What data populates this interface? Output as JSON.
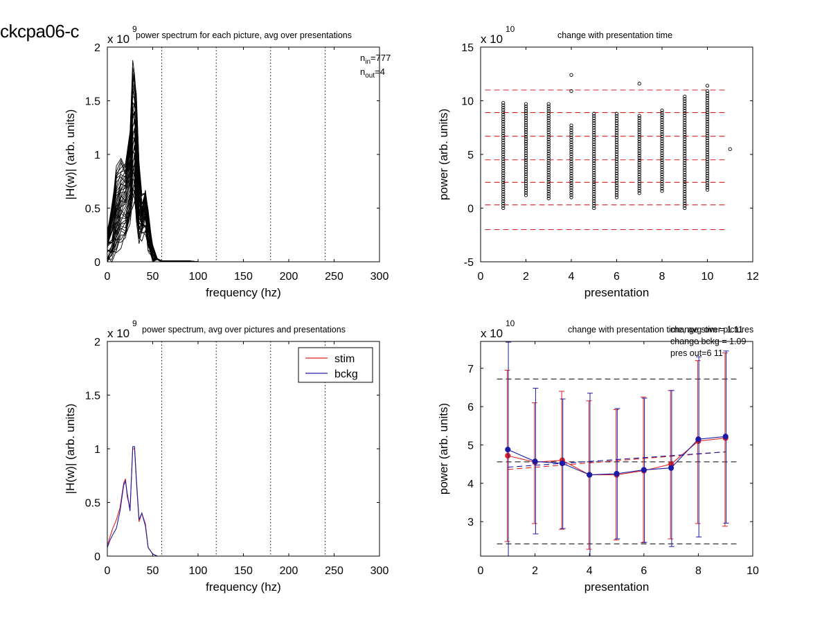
{
  "figure_title": "ckcpa06-c",
  "chart_data": [
    {
      "type": "line",
      "title": "power spectrum for each picture, avg over presentations",
      "xlabel": "frequency (hz)",
      "ylabel": "|H(w)| (arb. units)",
      "xlim": [
        0,
        300
      ],
      "ylim": [
        0,
        2
      ],
      "xticks": [
        0,
        50,
        100,
        150,
        200,
        250,
        300
      ],
      "yticks": [
        0,
        0.5,
        1,
        1.5,
        2
      ],
      "y_multiplier_base": "x 10",
      "y_multiplier_exp": "9",
      "vlines": [
        60,
        120,
        180,
        240,
        300
      ],
      "annotations": {
        "n_in_label": "n",
        "n_in_sub": "in",
        "n_in_value": "=777",
        "n_out_label": "n",
        "n_out_sub": "out",
        "n_out_value": "=4"
      },
      "line_color": "#000000",
      "envelope": {
        "x": [
          0,
          5,
          10,
          15,
          20,
          25,
          28,
          30,
          32,
          35,
          38,
          42,
          45,
          50,
          55,
          60,
          70,
          80,
          90,
          100,
          150,
          200,
          300
        ],
        "low": [
          0.02,
          0.05,
          0.1,
          0.18,
          0.25,
          0.4,
          0.55,
          0.6,
          0.4,
          0.2,
          0.25,
          0.3,
          0.15,
          0.05,
          0.02,
          0.0,
          0.0,
          0.0,
          0.0,
          0.0,
          0.0,
          0.0,
          0.0
        ],
        "high": [
          0.3,
          0.5,
          0.85,
          0.98,
          0.95,
          1.2,
          1.85,
          1.8,
          1.6,
          0.9,
          0.6,
          0.7,
          0.45,
          0.1,
          0.03,
          0.01,
          0.01,
          0.01,
          0.01,
          0.0,
          0.0,
          0.0,
          0.0
        ]
      },
      "n_traces": 40
    },
    {
      "type": "scatter",
      "title": "change with presentation time",
      "xlabel": "presentation",
      "ylabel": "power (arb. units)",
      "xlim": [
        0,
        12
      ],
      "ylim": [
        -5,
        15
      ],
      "xticks": [
        0,
        2,
        4,
        6,
        8,
        10,
        12
      ],
      "yticks": [
        -5,
        0,
        5,
        10,
        15
      ],
      "y_multiplier_base": "x 10",
      "y_multiplier_exp": "10",
      "hlines": [
        -2.0,
        0.3,
        2.4,
        4.5,
        6.7,
        8.9,
        11.0
      ],
      "hline_color": "#d42020",
      "marker_color": "#000000",
      "points": [
        {
          "x": 1,
          "min": 0.0,
          "max": 9.8,
          "extra": []
        },
        {
          "x": 2,
          "min": 1.2,
          "max": 9.7,
          "extra": []
        },
        {
          "x": 3,
          "min": 0.9,
          "max": 9.7,
          "extra": []
        },
        {
          "x": 4,
          "min": 1.0,
          "max": 7.7,
          "extra": [
            10.9,
            12.4
          ]
        },
        {
          "x": 5,
          "min": 0.0,
          "max": 8.8,
          "extra": []
        },
        {
          "x": 6,
          "min": 1.0,
          "max": 8.8,
          "extra": []
        },
        {
          "x": 7,
          "min": 1.4,
          "max": 8.6,
          "extra": [
            11.6
          ]
        },
        {
          "x": 8,
          "min": 1.6,
          "max": 9.1,
          "extra": []
        },
        {
          "x": 9,
          "min": 0.0,
          "max": 10.4,
          "extra": []
        },
        {
          "x": 10,
          "min": 1.7,
          "max": 10.9,
          "extra": [
            11.4
          ]
        },
        {
          "x": 11,
          "min": 5.5,
          "max": 5.5,
          "extra": []
        }
      ]
    },
    {
      "type": "line",
      "title": "power spectrum, avg over pictures and presentations",
      "xlabel": "frequency (hz)",
      "ylabel": "|H(w)| (arb. units)",
      "xlim": [
        0,
        300
      ],
      "ylim": [
        0,
        2
      ],
      "xticks": [
        0,
        50,
        100,
        150,
        200,
        250,
        300
      ],
      "yticks": [
        0,
        0.5,
        1,
        1.5,
        2
      ],
      "y_multiplier_base": "x 10",
      "y_multiplier_exp": "9",
      "vlines": [
        60,
        120,
        180,
        240,
        300
      ],
      "x": [
        0,
        3,
        6,
        10,
        14,
        18,
        20,
        22,
        25,
        28,
        30,
        32,
        35,
        38,
        42,
        45,
        50,
        55,
        60,
        80,
        100,
        150,
        200,
        250,
        300
      ],
      "series": [
        {
          "name": "stim",
          "color": "#e02020",
          "values": [
            0.1,
            0.18,
            0.26,
            0.34,
            0.45,
            0.68,
            0.72,
            0.55,
            0.45,
            1.0,
            1.0,
            0.7,
            0.32,
            0.4,
            0.3,
            0.08,
            0.02,
            0.0,
            0.0,
            0.0,
            0.0,
            0.0,
            0.0,
            0.0,
            0.0
          ]
        },
        {
          "name": "bckg",
          "color": "#1a1aa8",
          "values": [
            0.08,
            0.15,
            0.2,
            0.26,
            0.42,
            0.66,
            0.7,
            0.58,
            0.42,
            1.02,
            1.02,
            0.72,
            0.34,
            0.4,
            0.28,
            0.08,
            0.02,
            0.0,
            0.0,
            0.0,
            0.0,
            0.0,
            0.0,
            0.0,
            0.0
          ]
        }
      ]
    },
    {
      "type": "line",
      "title": "change with presentation time, avg over pictures",
      "xlabel": "presentation",
      "ylabel": "power (arb. units)",
      "xlim": [
        0,
        10
      ],
      "ylim": [
        2.1,
        7.7
      ],
      "xticks": [
        0,
        2,
        4,
        6,
        8,
        10
      ],
      "yticks": [
        3,
        4,
        5,
        6,
        7
      ],
      "y_multiplier_base": "x 10",
      "y_multiplier_exp": "10",
      "annotations": [
        "change stim = 1.11",
        "change bckg = 1.09",
        "pres out=6 11"
      ],
      "hlines": [
        2.42,
        4.56,
        6.72
      ],
      "x": [
        1,
        2,
        3,
        4,
        5,
        6,
        7,
        8,
        9
      ],
      "series": [
        {
          "name": "stim",
          "color": "#e02020",
          "values": [
            4.72,
            4.55,
            4.6,
            4.22,
            4.22,
            4.33,
            4.5,
            5.1,
            5.18
          ],
          "err_low": [
            2.48,
            2.95,
            2.8,
            2.28,
            2.52,
            2.45,
            2.55,
            2.95,
            2.88
          ],
          "err_high": [
            6.95,
            6.1,
            6.4,
            6.15,
            5.92,
            6.25,
            6.42,
            7.2,
            7.4
          ],
          "trend": [
            4.36,
            4.82
          ]
        },
        {
          "name": "bckg",
          "color": "#1a1aa8",
          "values": [
            4.88,
            4.57,
            4.52,
            4.22,
            4.25,
            4.35,
            4.4,
            5.15,
            5.22
          ],
          "err_low": [
            2.1,
            2.68,
            2.82,
            2.1,
            2.55,
            2.46,
            2.35,
            2.6,
            2.96
          ],
          "err_high": [
            7.68,
            6.48,
            6.2,
            6.35,
            5.95,
            6.22,
            6.42,
            7.3,
            7.45
          ],
          "trend": [
            4.42,
            4.82
          ]
        }
      ]
    }
  ]
}
